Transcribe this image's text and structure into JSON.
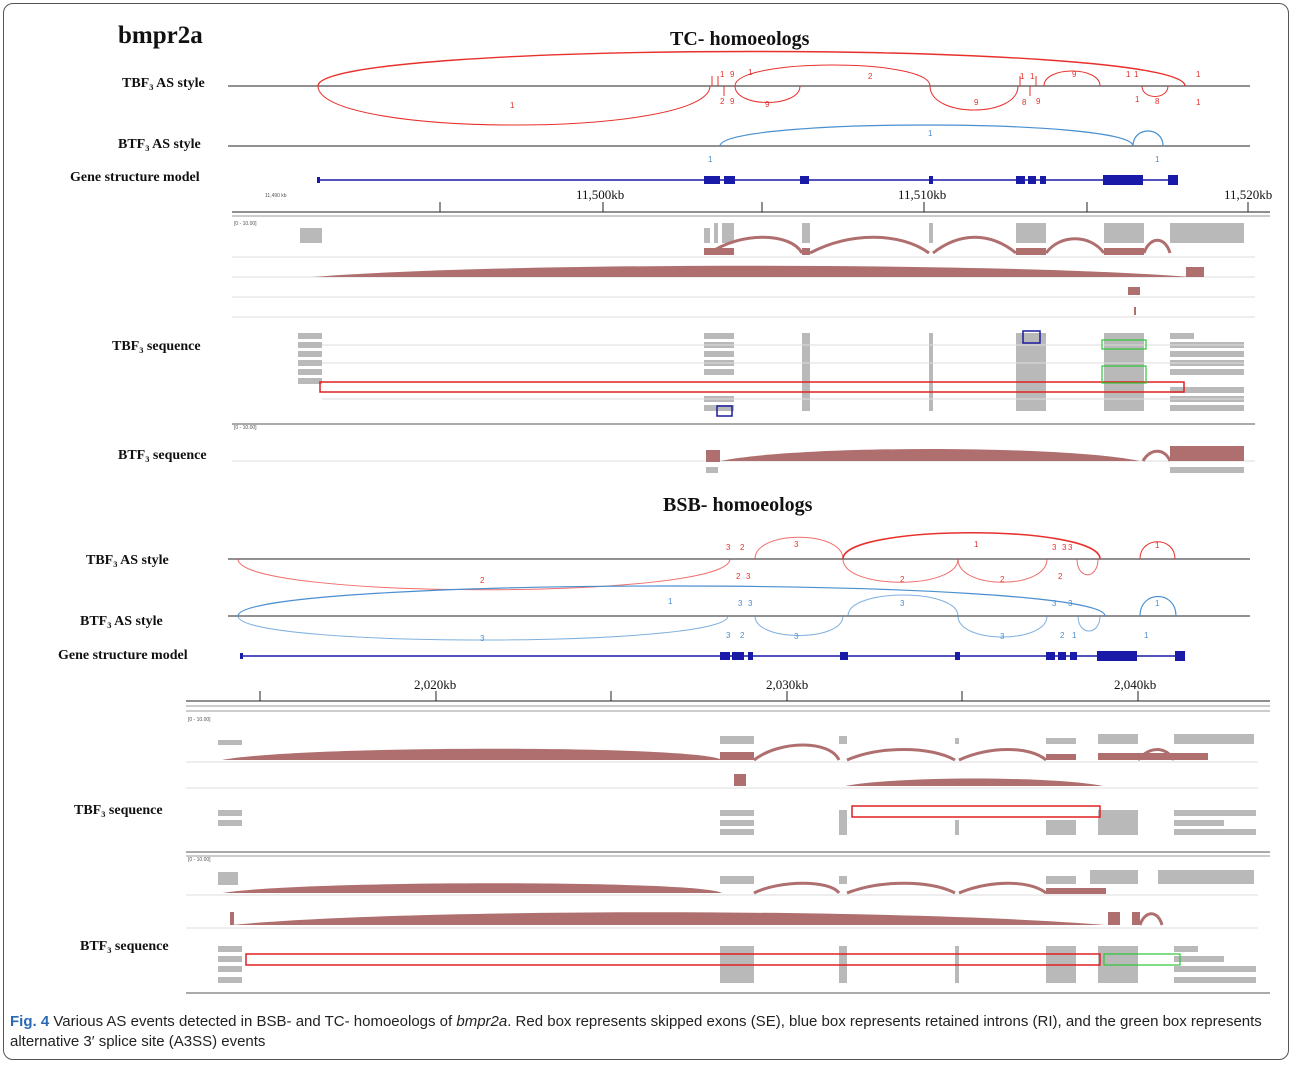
{
  "gene_name": "bmpr2a",
  "sections": {
    "tc": {
      "title": "TC- homoeologs",
      "labels": {
        "tbf3_as": "TBF₃ AS style",
        "btf3_as": "BTF₃ AS style",
        "gene_model": "Gene structure model",
        "tbf3_seq": "TBF₃ sequence",
        "btf3_seq": "BTF₃ sequence"
      },
      "small_tick": "11,490 kb",
      "ticks": [
        "11,500kb",
        "11,510kb",
        "11,520kb"
      ]
    },
    "bsb": {
      "title": "BSB- homoeologs",
      "labels": {
        "tbf3_as": "TBF₃ AS style",
        "btf3_as": "BTF₃ AS style",
        "gene_model": "Gene structure model",
        "tbf3_seq": "TBF₃ sequence",
        "btf3_seq": "BTF₃ sequence"
      },
      "ticks": [
        "2,020kb",
        "2,030kb",
        "2,040kb"
      ]
    }
  },
  "track_range_label": "[0 - 10.00]",
  "arc_labels": {
    "tc_tbf3": [
      "1",
      "9",
      "1",
      "9",
      "2",
      "1",
      "1",
      "1",
      "1",
      "1",
      "8",
      "1",
      "1",
      "1",
      "9",
      "8",
      "9",
      "2",
      "9",
      "9"
    ],
    "tc_btf3": [
      "1",
      "1",
      "1"
    ],
    "bsb_tbf3": [
      "3",
      "2",
      "3",
      "1",
      "3",
      "2",
      "3",
      "1",
      "3",
      "2",
      "2",
      "2",
      "2",
      "3"
    ],
    "bsb_btf3": [
      "1",
      "1",
      "3",
      "3",
      "3",
      "3",
      "3",
      "3",
      "2",
      "3",
      "3",
      "3",
      "2",
      "1",
      "1"
    ]
  },
  "legend_boxes": {
    "red": "#e02020",
    "blue": "#1c1c9c",
    "green": "#2ec43a"
  },
  "colors": {
    "tbf3_arc": "#e8302c",
    "btf3_arc": "#4a8fd0",
    "gene_model": "#1a1aa8",
    "coverage": "#b06f6f",
    "read": "#b9b9b9",
    "caption_accent": "#2a6ab3"
  },
  "caption": {
    "label": "Fig. 4",
    "text_before_italic": "Various AS events detected in BSB- and TC- homoeologs of ",
    "italic": "bmpr2a",
    "text_after_italic": ". Red box represents skipped exons (SE), blue box represents retained introns (RI), and the green box represents alternative 3′ splice site (A3SS) events"
  }
}
